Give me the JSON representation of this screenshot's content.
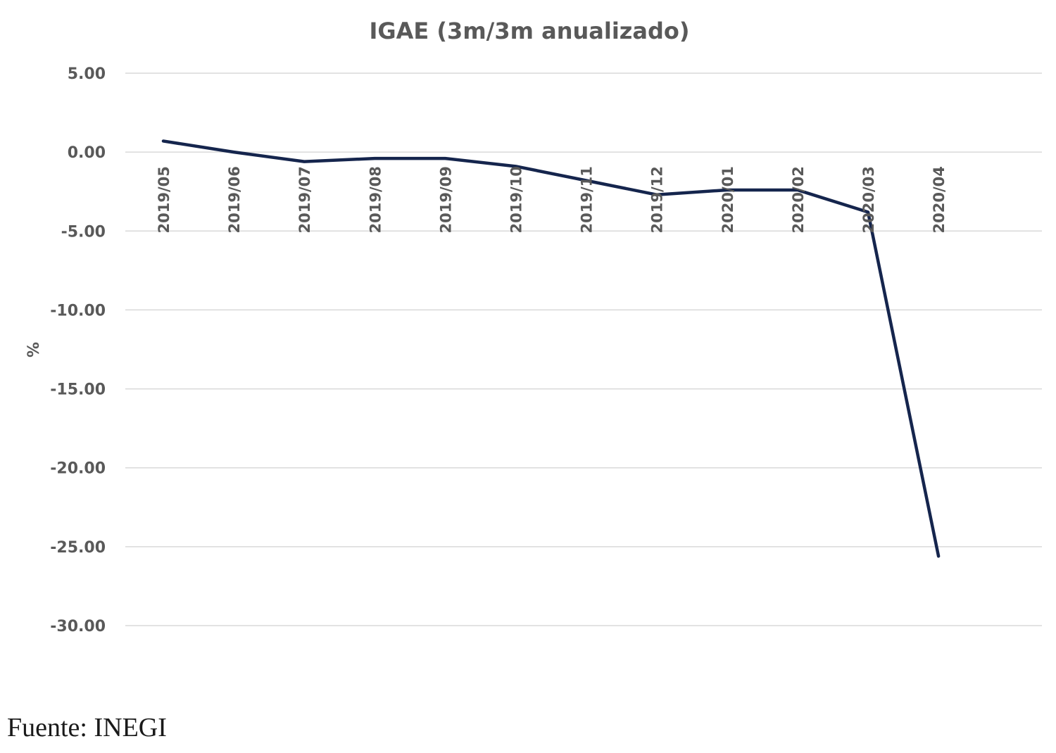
{
  "source_note": "Fuente: INEGI",
  "chart_data": {
    "type": "line",
    "title": "IGAE (3m/3m anualizado)",
    "xlabel": "",
    "ylabel": "%",
    "ylim": [
      -30,
      5
    ],
    "y_ticks": [
      5,
      0,
      -5,
      -10,
      -15,
      -20,
      -25,
      -30
    ],
    "y_tick_labels": [
      "5.00",
      "0.00",
      "-5.00",
      "-10.00",
      "-15.00",
      "-20.00",
      "-25.00",
      "-30.00"
    ],
    "categories": [
      "2019/05",
      "2019/06",
      "2019/07",
      "2019/08",
      "2019/09",
      "2019/10",
      "2019/11",
      "2019/12",
      "2020/01",
      "2020/02",
      "2020/03",
      "2020/04"
    ],
    "series": [
      {
        "color": "#15254d",
        "values": [
          0.7,
          0.0,
          -0.6,
          -0.4,
          -0.4,
          -0.9,
          -1.8,
          -2.7,
          -2.4,
          -2.4,
          -3.8,
          -25.6
        ]
      }
    ],
    "grid": true,
    "legend": "none"
  }
}
